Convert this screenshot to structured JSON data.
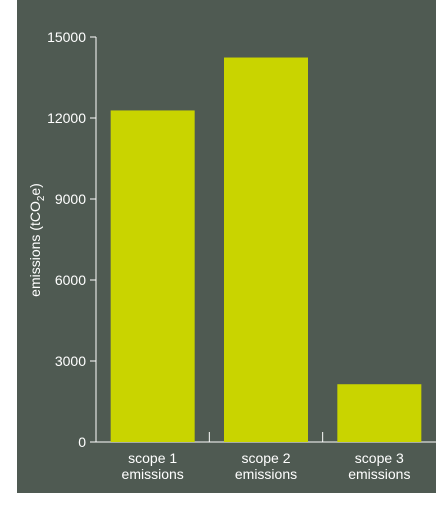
{
  "chart_data": {
    "type": "bar",
    "categories": [
      [
        "scope 1",
        "emissions"
      ],
      [
        "scope 2",
        "emissions"
      ],
      [
        "scope 3",
        "emissions"
      ]
    ],
    "values": [
      12280,
      14240,
      2140
    ],
    "ylabel_parts": [
      "emissions (tCO",
      "2",
      "e)"
    ],
    "yticks": [
      "0",
      "3000",
      "6000",
      "9000",
      "12000",
      "15000"
    ],
    "ylim": [
      0,
      15000
    ],
    "grid": false,
    "colors": {
      "background": "#4f5a52",
      "bar": "#c9d400",
      "axis": "#ffffff",
      "text": "#ffffff"
    }
  }
}
